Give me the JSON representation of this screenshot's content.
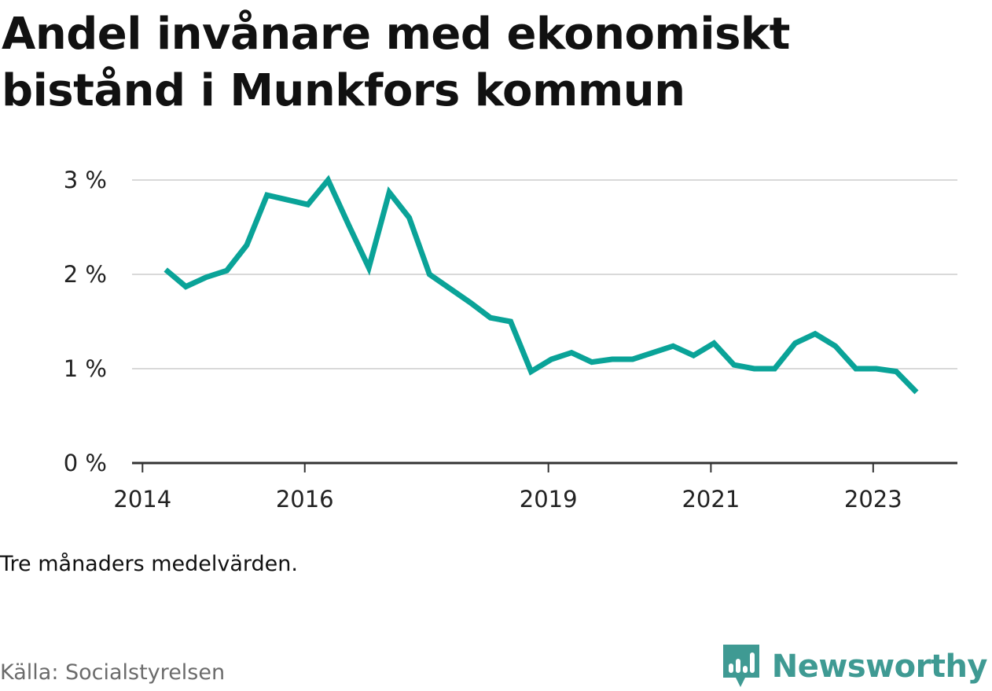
{
  "title": "Andel invånare med ekonomiskt bistånd i Munkfors kommun",
  "note": "Tre månaders medelvärden.",
  "source": "Källa: Socialstyrelsen",
  "brand": {
    "name": "Newsworthy",
    "icon": "bar-chart-speech-bubble-icon"
  },
  "colors": {
    "line": "#0aa398",
    "grid": "#d9d9d9",
    "axis": "#333333",
    "brand": "#3f9a93"
  },
  "chart_data": {
    "type": "line",
    "title": "Andel invånare med ekonomiskt bistånd i Munkfors kommun",
    "xlabel": "",
    "ylabel": "",
    "xlim": [
      "2013-11-15",
      "2024-01-15"
    ],
    "ylim": [
      0,
      3
    ],
    "y_ticks": [
      {
        "value": 0,
        "label": "0 %"
      },
      {
        "value": 1,
        "label": "1 %"
      },
      {
        "value": 2,
        "label": "2 %"
      },
      {
        "value": 3,
        "label": "3 %"
      }
    ],
    "x_ticks": [
      {
        "value": "2014-01-01",
        "label": "2014"
      },
      {
        "value": "2016-01-01",
        "label": "2016"
      },
      {
        "value": "2019-01-01",
        "label": "2019"
      },
      {
        "value": "2021-01-01",
        "label": "2021"
      },
      {
        "value": "2023-01-01",
        "label": "2023"
      }
    ],
    "grid": true,
    "series": [
      {
        "x": [
          "2014-04-15",
          "2014-07-15",
          "2014-10-15",
          "2015-01-15",
          "2015-04-15",
          "2015-07-15",
          "2015-10-15",
          "2016-01-15",
          "2016-04-15",
          "2016-07-15",
          "2016-10-15",
          "2017-01-15",
          "2017-04-15",
          "2017-07-15",
          "2017-10-15",
          "2018-01-15",
          "2018-04-15",
          "2018-07-15",
          "2018-10-15",
          "2019-01-15",
          "2019-04-15",
          "2019-07-15",
          "2019-10-15",
          "2020-01-15",
          "2020-04-15",
          "2020-07-15",
          "2020-10-15",
          "2021-01-15",
          "2021-04-15",
          "2021-07-15",
          "2021-10-15",
          "2022-01-15",
          "2022-04-15",
          "2022-07-15",
          "2022-10-15",
          "2023-01-15",
          "2023-04-15",
          "2023-07-15"
        ],
        "values": [
          2.05,
          1.87,
          1.97,
          2.04,
          2.31,
          2.84,
          2.79,
          2.74,
          3.0,
          2.53,
          2.07,
          2.87,
          2.6,
          2.0,
          1.85,
          1.7,
          1.54,
          1.5,
          0.97,
          1.1,
          1.17,
          1.07,
          1.1,
          1.1,
          1.17,
          1.24,
          1.14,
          1.27,
          1.04,
          1.0,
          1.0,
          1.27,
          1.37,
          1.24,
          1.0,
          1.0,
          0.97,
          0.75
        ]
      }
    ]
  }
}
